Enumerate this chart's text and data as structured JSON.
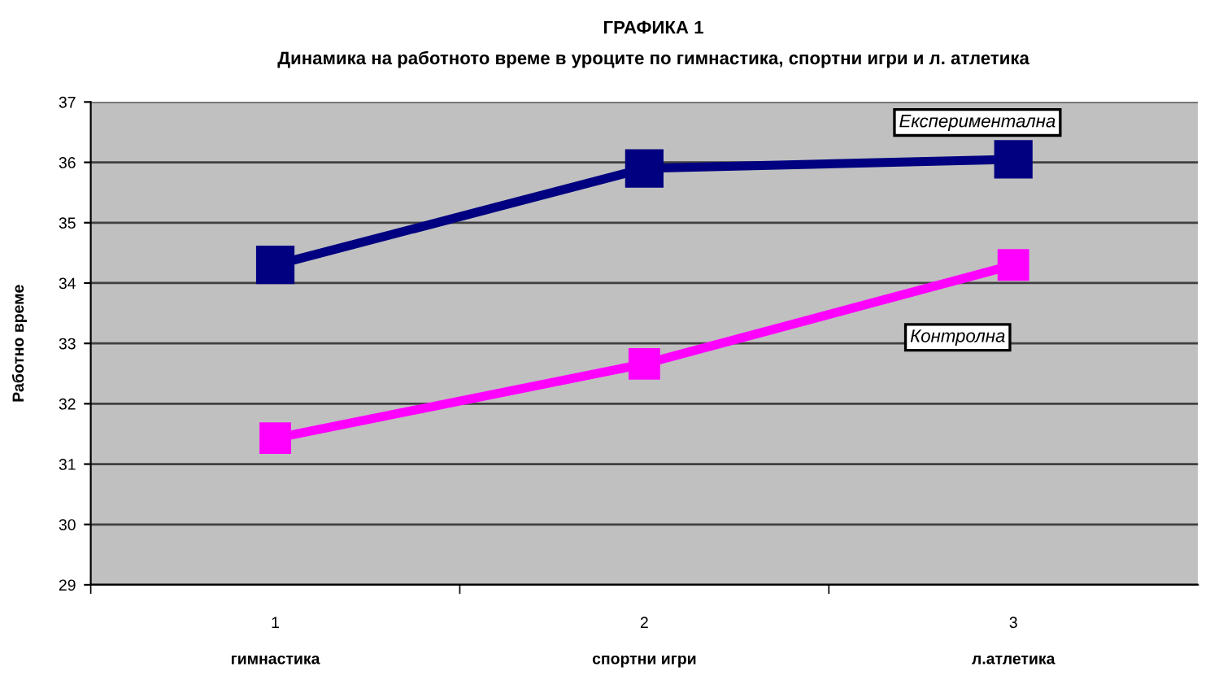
{
  "chart_data": {
    "type": "line",
    "title": "ГРАФИКА 1",
    "subtitle": "Динамика на работното време в уроците по гимнастика, спортни игри и л. атлетика",
    "ylabel": "Работно време",
    "categories": [
      "1",
      "2",
      "3"
    ],
    "series": [
      {
        "name": "Експериментална",
        "color": "#000080",
        "values": [
          34.3,
          35.9,
          36.05
        ]
      },
      {
        "name": "Контролна",
        "color": "#ff00ff",
        "values": [
          31.43,
          32.66,
          34.3
        ]
      }
    ],
    "annotations": [
      "гимнастика",
      "спортни игри",
      "л.атлетика"
    ],
    "ylim": [
      29,
      37
    ],
    "yticks": [
      29,
      30,
      31,
      32,
      33,
      34,
      35,
      36,
      37
    ],
    "grid": "y",
    "legend": false,
    "marker": "square",
    "line_style": "solid"
  }
}
